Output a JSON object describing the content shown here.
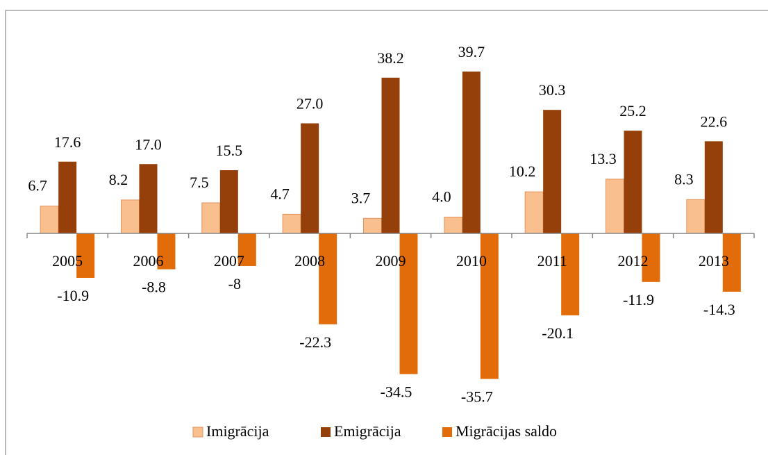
{
  "chart_data": {
    "type": "bar",
    "categories": [
      "2005",
      "2006",
      "2007",
      "2008",
      "2009",
      "2010",
      "2011",
      "2012",
      "2013"
    ],
    "series": [
      {
        "name": "Imigrācija",
        "color": "#f9bf8f",
        "values": [
          6.7,
          8.2,
          7.5,
          4.7,
          3.7,
          4.0,
          10.2,
          13.3,
          8.3
        ],
        "value_labels": [
          "6.7",
          "8.2",
          "7.5",
          "4.7",
          "3.7",
          "4.0",
          "10.2",
          "13.3",
          "8.3"
        ]
      },
      {
        "name": "Emigrācija",
        "color": "#953f0a",
        "values": [
          17.6,
          17.0,
          15.5,
          27.0,
          38.2,
          39.7,
          30.3,
          25.2,
          22.6
        ],
        "value_labels": [
          "17.6",
          "17.0",
          "15.5",
          "27.0",
          "38.2",
          "39.7",
          "30.3",
          "25.2",
          "22.6"
        ]
      },
      {
        "name": "Migrācijas saldo",
        "color": "#e36c0a",
        "values": [
          -10.9,
          -8.8,
          -8,
          -22.3,
          -34.5,
          -35.7,
          -20.1,
          -11.9,
          -14.3
        ]
      }
    ]
  }
}
